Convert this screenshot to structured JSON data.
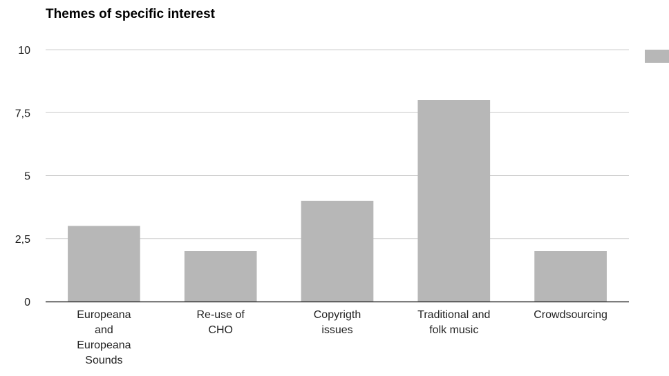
{
  "chart_data": {
    "type": "bar",
    "title": "Themes of specific interest",
    "categories": [
      [
        "Europeana",
        "and",
        "Europeana",
        "Sounds"
      ],
      [
        "Re-use of",
        "CHO"
      ],
      [
        "Copyrigth",
        "issues"
      ],
      [
        "Traditional and",
        "folk music"
      ],
      [
        "Crowdsourcing"
      ]
    ],
    "series": [
      {
        "values": [
          3,
          2,
          4,
          8,
          2
        ],
        "color": "#b7b7b7"
      }
    ],
    "ylim": [
      0,
      10
    ],
    "y_ticks": [
      0,
      2.5,
      5,
      7.5,
      10
    ],
    "y_tick_labels": [
      "0",
      "2,5",
      "5",
      "7,5",
      "10"
    ],
    "grid": true,
    "legend": {
      "position": "right",
      "entries": [
        ""
      ]
    },
    "xlabel": "",
    "ylabel": ""
  }
}
